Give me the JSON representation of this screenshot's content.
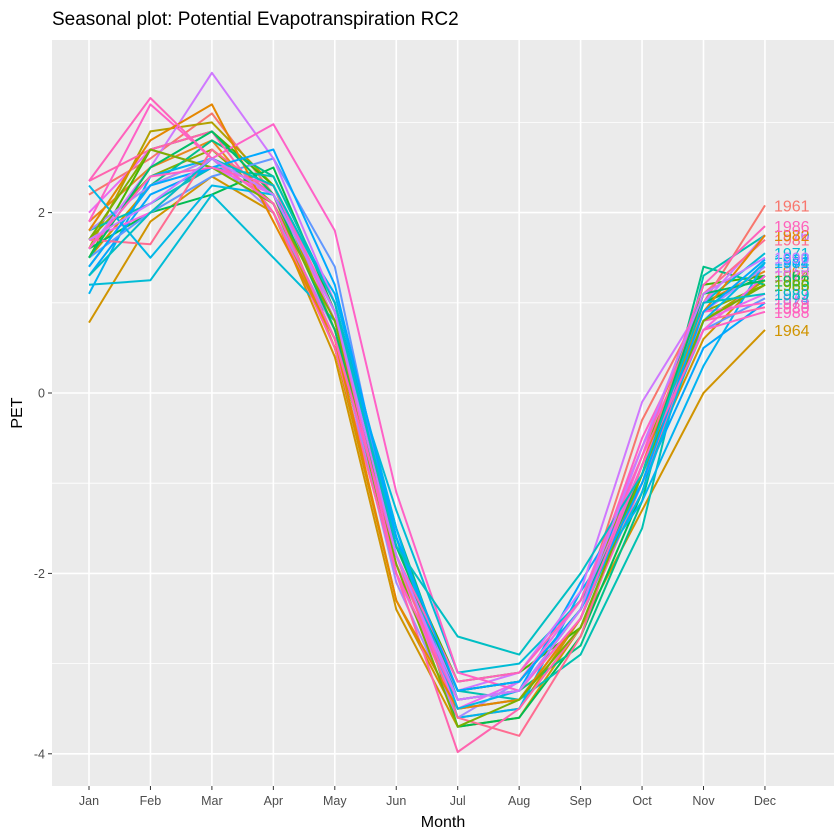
{
  "chart_data": {
    "type": "line",
    "title": "Seasonal plot: Potential Evapotranspiration RC2",
    "xlabel": "Month",
    "ylabel": "PET",
    "categories": [
      "Jan",
      "Feb",
      "Mar",
      "Apr",
      "May",
      "Jun",
      "Jul",
      "Aug",
      "Sep",
      "Oct",
      "Nov",
      "Dec"
    ],
    "ylim": [
      -4.4,
      3.9
    ],
    "yticks": [
      -4,
      -2,
      0,
      2
    ],
    "grid": true,
    "legend": "none",
    "end_labels": true,
    "series": [
      {
        "name": "1961",
        "color": "#F8766D",
        "values": [
          2.2,
          2.6,
          3.1,
          2.2,
          0.5,
          -2.0,
          -3.4,
          -3.3,
          -2.4,
          -0.3,
          1.0,
          2.08
        ]
      },
      {
        "name": "1962",
        "color": "#E7851E",
        "values": [
          1.9,
          2.5,
          2.8,
          2.0,
          0.6,
          -1.8,
          -3.3,
          -3.2,
          -2.3,
          -0.6,
          1.0,
          1.35
        ]
      },
      {
        "name": "1963",
        "color": "#D09400",
        "values": [
          1.5,
          2.3,
          2.6,
          2.1,
          0.5,
          -2.3,
          -3.6,
          -3.5,
          -2.5,
          -0.9,
          0.6,
          1.3
        ]
      },
      {
        "name": "1964",
        "color": "#D09400",
        "values": [
          0.78,
          1.9,
          2.4,
          2.0,
          0.4,
          -2.4,
          -3.7,
          -3.6,
          -2.6,
          -1.3,
          0.0,
          0.7
        ]
      },
      {
        "name": "1965",
        "color": "#B2A100",
        "values": [
          1.6,
          2.9,
          3.0,
          2.3,
          0.7,
          -2.0,
          -3.5,
          -3.4,
          -2.5,
          -0.8,
          0.8,
          1.25
        ]
      },
      {
        "name": "1966",
        "color": "#89AC00",
        "values": [
          1.7,
          2.4,
          2.7,
          2.1,
          0.6,
          -1.9,
          -3.3,
          -3.2,
          -2.4,
          -0.7,
          0.9,
          1.2
        ]
      },
      {
        "name": "1967",
        "color": "#45B500",
        "values": [
          1.5,
          2.7,
          2.9,
          2.3,
          0.8,
          -1.7,
          -3.2,
          -3.1,
          -2.6,
          -0.9,
          1.2,
          1.3
        ]
      },
      {
        "name": "1968",
        "color": "#00BC51",
        "values": [
          1.6,
          2.0,
          2.2,
          2.5,
          0.9,
          -1.6,
          -3.7,
          -3.6,
          -2.7,
          -1.1,
          1.0,
          1.3
        ]
      },
      {
        "name": "1969",
        "color": "#00C087",
        "values": [
          1.4,
          2.3,
          2.8,
          2.4,
          1.0,
          -1.5,
          -3.4,
          -3.3,
          -2.8,
          -1.2,
          1.4,
          1.2
        ]
      },
      {
        "name": "1970",
        "color": "#00C1B2",
        "values": [
          1.8,
          2.1,
          2.5,
          2.4,
          1.0,
          -1.7,
          -3.3,
          -3.4,
          -2.9,
          -1.5,
          1.3,
          1.75
        ]
      },
      {
        "name": "1971",
        "color": "#00BCD6",
        "values": [
          1.2,
          1.25,
          2.2,
          1.5,
          0.8,
          -1.3,
          -3.1,
          -3.0,
          -2.3,
          -1.0,
          1.0,
          1.55
        ]
      },
      {
        "name": "1972",
        "color": "#00B3F2",
        "values": [
          1.1,
          2.4,
          2.6,
          2.2,
          1.1,
          -1.5,
          -3.6,
          -3.5,
          -2.2,
          -1.2,
          0.3,
          1.45
        ]
      },
      {
        "name": "1973",
        "color": "#00A6FF",
        "values": [
          1.3,
          2.2,
          2.5,
          2.3,
          1.0,
          -1.6,
          -3.4,
          -3.3,
          -2.1,
          -1.0,
          0.5,
          1.0
        ]
      },
      {
        "name": "1974",
        "color": "#6198FF",
        "values": [
          1.5,
          2.0,
          2.4,
          2.6,
          1.4,
          -1.8,
          -3.5,
          -3.4,
          -2.5,
          -0.9,
          0.7,
          1.05
        ]
      },
      {
        "name": "1975",
        "color": "#A58AFF",
        "values": [
          1.8,
          2.3,
          2.6,
          2.0,
          0.7,
          -2.1,
          -3.6,
          -3.2,
          -2.4,
          -0.8,
          0.9,
          1.4
        ]
      },
      {
        "name": "1976",
        "color": "#CF78FF",
        "values": [
          1.6,
          2.5,
          3.55,
          2.6,
          1.0,
          -1.9,
          -3.3,
          -3.1,
          -2.2,
          -0.1,
          1.0,
          1.75
        ]
      },
      {
        "name": "1977",
        "color": "#EA6AF1",
        "values": [
          2.0,
          2.7,
          2.5,
          2.2,
          0.9,
          -2.0,
          -3.5,
          -3.2,
          -2.3,
          -0.6,
          0.8,
          1.1
        ]
      },
      {
        "name": "1978",
        "color": "#F863DF",
        "values": [
          1.7,
          2.0,
          2.6,
          2.3,
          0.8,
          -1.9,
          -3.4,
          -3.3,
          -2.5,
          -0.7,
          0.7,
          1.3
        ]
      },
      {
        "name": "1979",
        "color": "#FF61C7",
        "values": [
          1.9,
          3.2,
          2.6,
          2.98,
          1.8,
          -1.1,
          -3.1,
          -3.3,
          -2.4,
          -0.5,
          0.9,
          1.0
        ]
      },
      {
        "name": "1980",
        "color": "#FF64AF",
        "values": [
          2.35,
          2.7,
          2.9,
          2.0,
          0.5,
          -2.0,
          -3.98,
          -3.5,
          -2.6,
          -1.0,
          0.8,
          0.95
        ]
      },
      {
        "name": "1981",
        "color": "#FF6C91",
        "values": [
          1.7,
          1.65,
          2.7,
          2.2,
          0.7,
          -1.8,
          -3.6,
          -3.8,
          -2.7,
          -0.8,
          1.1,
          1.7
        ]
      },
      {
        "name": "1982",
        "color": "#E58700",
        "values": [
          1.8,
          2.8,
          3.2,
          1.9,
          0.6,
          -2.3,
          -3.5,
          -3.4,
          -2.5,
          -0.8,
          0.9,
          1.75
        ]
      },
      {
        "name": "1983",
        "color": "#00BE67",
        "values": [
          1.5,
          2.5,
          2.9,
          2.2,
          0.7,
          -1.7,
          -3.3,
          -3.2,
          -2.4,
          -0.9,
          1.1,
          1.25
        ]
      },
      {
        "name": "1984",
        "color": "#00B8E7",
        "values": [
          2.3,
          1.5,
          2.3,
          2.2,
          0.9,
          -1.6,
          -3.5,
          -3.3,
          -2.4,
          -1.1,
          0.8,
          1.45
        ]
      },
      {
        "name": "1985",
        "color": "#7CAE00",
        "values": [
          1.7,
          2.7,
          2.5,
          2.1,
          0.8,
          -1.9,
          -3.7,
          -3.4,
          -2.6,
          -0.9,
          0.8,
          1.2
        ]
      },
      {
        "name": "1986",
        "color": "#FF62BC",
        "values": [
          2.35,
          3.27,
          2.6,
          2.1,
          0.6,
          -1.8,
          -3.2,
          -3.1,
          -2.3,
          -0.7,
          1.2,
          1.85
        ]
      },
      {
        "name": "1987",
        "color": "#00A9FF",
        "values": [
          1.4,
          2.3,
          2.5,
          2.7,
          1.2,
          -1.6,
          -3.3,
          -3.2,
          -2.4,
          -1.0,
          0.9,
          1.48
        ]
      },
      {
        "name": "1988",
        "color": "#FF61C3",
        "values": [
          1.6,
          2.4,
          2.5,
          2.3,
          0.9,
          -2.0,
          -3.4,
          -3.3,
          -2.5,
          -0.8,
          0.7,
          0.9
        ]
      },
      {
        "name": "1989",
        "color": "#00BFC4",
        "values": [
          1.3,
          2.0,
          2.6,
          2.3,
          1.0,
          -1.7,
          -2.7,
          -2.9,
          -2.0,
          -0.9,
          1.0,
          1.1
        ]
      },
      {
        "name": "1990",
        "color": "#C77CFF",
        "values": [
          1.7,
          2.1,
          2.6,
          2.2,
          0.9,
          -1.8,
          -3.4,
          -3.3,
          -2.4,
          -0.6,
          1.1,
          1.5
        ]
      }
    ]
  }
}
